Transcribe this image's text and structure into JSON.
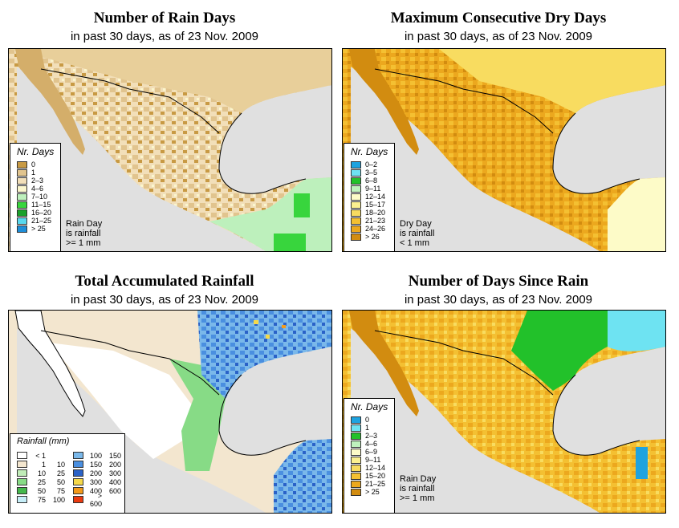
{
  "subtitle": "in past 30 days, as of  23 Nov. 2009",
  "panels": {
    "rain_days": {
      "title": "Number of Rain Days",
      "legend_title": "Nr. Days",
      "legend": [
        {
          "label": "0",
          "color": "#c89a44"
        },
        {
          "label": "1",
          "color": "#e1c48e"
        },
        {
          "label": "2–3",
          "color": "#f2dfb9"
        },
        {
          "label": "4–6",
          "color": "#fbf6cd"
        },
        {
          "label": "7–10",
          "color": "#bdf0bc"
        },
        {
          "label": "11–15",
          "color": "#38d53d"
        },
        {
          "label": "16–20",
          "color": "#1aa12b"
        },
        {
          "label": "21–25",
          "color": "#58d8ee"
        },
        {
          "label": "> 25",
          "color": "#1e8ed8"
        }
      ],
      "note": [
        "Rain Day",
        "is rainfall",
        ">= 1 mm"
      ]
    },
    "dry_days": {
      "title": "Maximum Consecutive Dry Days",
      "legend_title": "Nr. Days",
      "legend": [
        {
          "label": "0–2",
          "color": "#1ea3e0"
        },
        {
          "label": "3–5",
          "color": "#6ee3f2"
        },
        {
          "label": "6–8",
          "color": "#22c12a"
        },
        {
          "label": "9–11",
          "color": "#bff2bd"
        },
        {
          "label": "12–14",
          "color": "#fdfbc8"
        },
        {
          "label": "15–17",
          "color": "#fbf090"
        },
        {
          "label": "18–20",
          "color": "#f8dc60"
        },
        {
          "label": "21–23",
          "color": "#f4c032"
        },
        {
          "label": "24–26",
          "color": "#eca81e"
        },
        {
          "label": "> 26",
          "color": "#d28c10"
        }
      ],
      "note": [
        "Dry Day",
        "is rainfall",
        "< 1 mm"
      ]
    },
    "total_rain": {
      "title": "Total Accumulated Rainfall",
      "legend_title": "Rainfall (mm)",
      "legend_left": [
        {
          "lo": "< 1",
          "hi": "",
          "color": "#ffffff"
        },
        {
          "lo": "1",
          "hi": "10",
          "color": "#f3e6cf"
        },
        {
          "lo": "10",
          "hi": "25",
          "color": "#c0ecb8"
        },
        {
          "lo": "25",
          "hi": "50",
          "color": "#87db86"
        },
        {
          "lo": "50",
          "hi": "75",
          "color": "#44b84c"
        },
        {
          "lo": "75",
          "hi": "100",
          "color": "#c6eef8"
        }
      ],
      "legend_right": [
        {
          "lo": "100",
          "hi": "150",
          "color": "#7ab8ea"
        },
        {
          "lo": "150",
          "hi": "200",
          "color": "#4a8fe0"
        },
        {
          "lo": "200",
          "hi": "300",
          "color": "#2a62c8"
        },
        {
          "lo": "300",
          "hi": "400",
          "color": "#f6d94a"
        },
        {
          "lo": "400",
          "hi": "600",
          "color": "#f39a1a"
        },
        {
          "lo": "> 600",
          "hi": "",
          "color": "#ea3a10"
        }
      ]
    },
    "since_rain": {
      "title": "Number of Days Since Rain",
      "legend_title": "Nr. Days",
      "legend": [
        {
          "label": "0",
          "color": "#1ea3e0"
        },
        {
          "label": "1",
          "color": "#6ee3f2"
        },
        {
          "label": "2–3",
          "color": "#22c12a"
        },
        {
          "label": "4–6",
          "color": "#bff2bd"
        },
        {
          "label": "6–9",
          "color": "#fdfbc8"
        },
        {
          "label": "9–11",
          "color": "#fbf090"
        },
        {
          "label": "12–14",
          "color": "#f8dc60"
        },
        {
          "label": "15–20",
          "color": "#f4c032"
        },
        {
          "label": "21–25",
          "color": "#eca81e"
        },
        {
          "label": "> 25",
          "color": "#d28c10"
        }
      ],
      "note": [
        "Rain Day",
        "is rainfall",
        ">= 1 mm"
      ]
    }
  },
  "map_colors": {
    "sea": "#e0e0e0",
    "border": "#000000"
  }
}
